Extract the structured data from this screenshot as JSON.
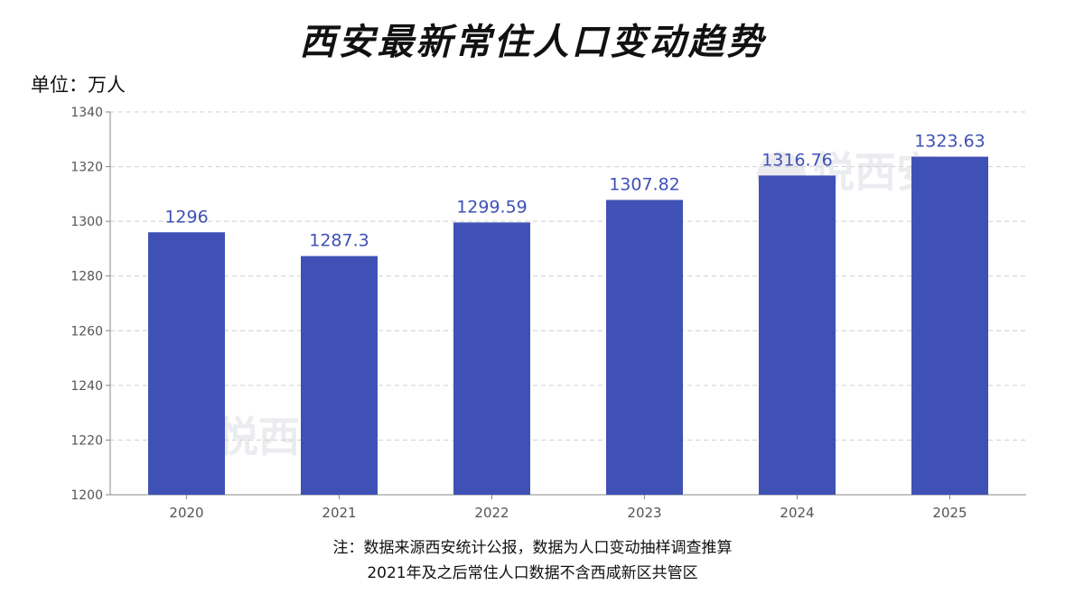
{
  "title": "西安最新常住人口变动趋势",
  "unit_label": "单位：万人",
  "watermark": "悦西安",
  "notes": [
    "注：数据来源西安统计公报，数据为人口变动抽样调查推算",
    "2021年及之后常住人口数据不含西咸新区共管区"
  ],
  "colors": {
    "bar": "#3f51b5",
    "label": "#3f51b5",
    "grid": "#cfcfcf",
    "axis": "#888888"
  },
  "chart_data": {
    "type": "bar",
    "title": "西安最新常住人口变动趋势",
    "ylabel": "单位：万人",
    "xlabel": "",
    "categories": [
      "2020",
      "2021",
      "2022",
      "2023",
      "2024",
      "2025"
    ],
    "values": [
      1296,
      1287.3,
      1299.59,
      1307.82,
      1316.76,
      1323.63
    ],
    "value_labels": [
      "1296",
      "1287.3",
      "1299.59",
      "1307.82",
      "1316.76",
      "1323.63"
    ],
    "ylim": [
      1200,
      1340
    ],
    "yticks": [
      "1200",
      "1220",
      "1240",
      "1260",
      "1280",
      "1300",
      "1320",
      "1340"
    ],
    "grid": true
  }
}
